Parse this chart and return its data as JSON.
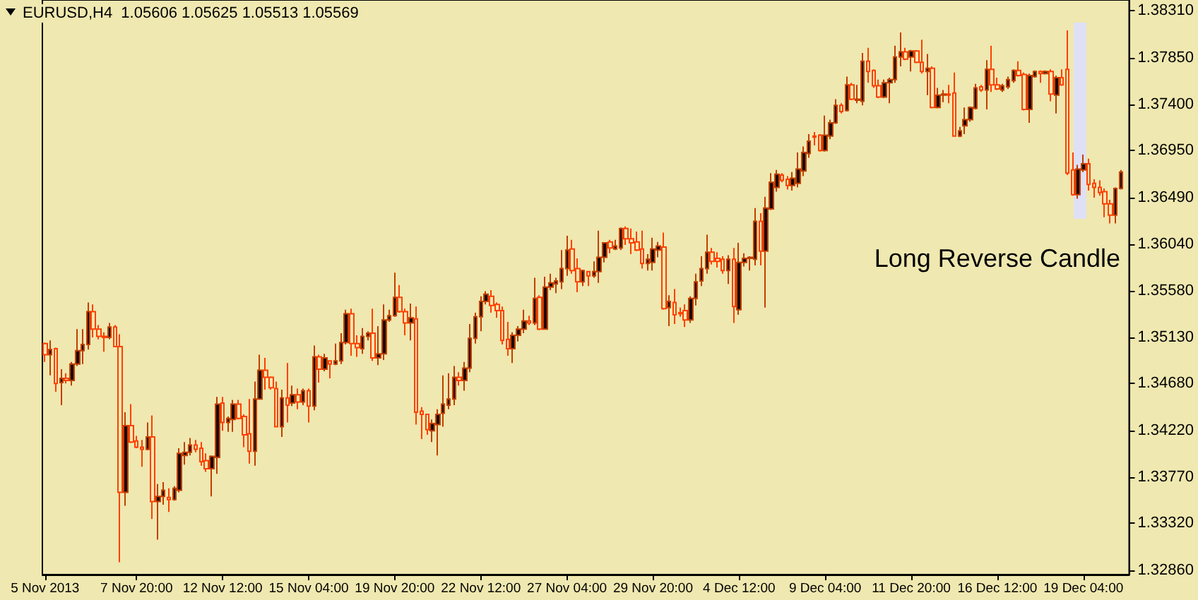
{
  "chart_data": {
    "type": "candlestick",
    "title": "EURUSD,H4  1.05606 1.05625 1.05513 1.05569",
    "annotations": [
      "Long Reverse Candle"
    ],
    "categories": [
      "5 Nov 2013",
      null,
      null,
      null,
      null,
      null,
      null,
      null,
      null,
      null,
      null,
      null,
      null,
      null,
      null,
      null,
      null,
      "7 Nov 20:00",
      null,
      null,
      null,
      null,
      null,
      null,
      null,
      null,
      null,
      null,
      null,
      null,
      null,
      null,
      null,
      "12 Nov 12:00",
      null,
      null,
      null,
      null,
      null,
      null,
      null,
      null,
      null,
      null,
      null,
      null,
      null,
      null,
      null,
      "15 Nov 04:00",
      null,
      null,
      null,
      null,
      null,
      null,
      null,
      null,
      null,
      null,
      null,
      null,
      null,
      null,
      null,
      "19 Nov 20:00",
      null,
      null,
      null,
      null,
      null,
      null,
      null,
      null,
      null,
      null,
      null,
      null,
      null,
      null,
      null,
      "22 Nov 12:00",
      null,
      null,
      null,
      null,
      null,
      null,
      null,
      null,
      null,
      null,
      null,
      null,
      null,
      null,
      null,
      "27 Nov 04:00",
      null,
      null,
      null,
      null,
      null,
      null,
      null,
      null,
      null,
      null,
      null,
      null,
      null,
      null,
      null,
      "29 Nov 20:00",
      null,
      null,
      null,
      null,
      null,
      null,
      null,
      null,
      null,
      null,
      null,
      null,
      null,
      null,
      null,
      "4 Dec 12:00",
      null,
      null,
      null,
      null,
      null,
      null,
      null,
      null,
      null,
      null,
      null,
      null,
      null,
      null,
      null,
      "9 Dec 04:00",
      null,
      null,
      null,
      null,
      null,
      null,
      null,
      null,
      null,
      null,
      null,
      null,
      null,
      null,
      null,
      "11 Dec 20:00",
      null,
      null,
      null,
      null,
      null,
      null,
      null,
      null,
      null,
      null,
      null,
      null,
      null,
      null,
      null,
      "16 Dec 12:00",
      null,
      null,
      null,
      null,
      null,
      null,
      null,
      null,
      null,
      null,
      null,
      null,
      null,
      null,
      null,
      "19 Dec 04:00",
      null,
      null,
      null,
      null,
      null,
      null,
      null
    ],
    "ohlc": [
      [
        1.3507,
        1.3508,
        1.3489,
        1.3496
      ],
      [
        1.3496,
        1.351,
        1.3476,
        1.3501
      ],
      [
        1.3502,
        1.3503,
        1.346,
        1.3468
      ],
      [
        1.3469,
        1.3482,
        1.3447,
        1.3473
      ],
      [
        1.3473,
        1.3478,
        1.3468,
        1.3471
      ],
      [
        1.3471,
        1.3489,
        1.3466,
        1.3487
      ],
      [
        1.3487,
        1.3521,
        1.3485,
        1.35
      ],
      [
        1.35,
        1.3521,
        1.3487,
        1.3506
      ],
      [
        1.3506,
        1.3547,
        1.3501,
        1.3538
      ],
      [
        1.3538,
        1.3545,
        1.3513,
        1.3521
      ],
      [
        1.3521,
        1.3525,
        1.3511,
        1.3514
      ],
      [
        1.3514,
        1.3518,
        1.3499,
        1.3513
      ],
      [
        1.3513,
        1.3527,
        1.3511,
        1.3523
      ],
      [
        1.3523,
        1.3525,
        1.3504,
        1.3504
      ],
      [
        1.3504,
        1.3516,
        1.3294,
        1.3362
      ],
      [
        1.3362,
        1.344,
        1.3349,
        1.3427
      ],
      [
        1.3427,
        1.3448,
        1.341,
        1.3411
      ],
      [
        1.3412,
        1.3417,
        1.3405,
        1.3406
      ],
      [
        1.3406,
        1.3413,
        1.3387,
        1.3404
      ],
      [
        1.3404,
        1.343,
        1.3403,
        1.3416
      ],
      [
        1.3416,
        1.3437,
        1.3336,
        1.3353
      ],
      [
        1.3353,
        1.337,
        1.3316,
        1.3358
      ],
      [
        1.3358,
        1.3372,
        1.335,
        1.3364
      ],
      [
        1.3357,
        1.3366,
        1.3343,
        1.3355
      ],
      [
        1.3355,
        1.3368,
        1.3354,
        1.3366
      ],
      [
        1.3364,
        1.3405,
        1.3362,
        1.34
      ],
      [
        1.3398,
        1.3411,
        1.3389,
        1.3401
      ],
      [
        1.3401,
        1.3415,
        1.3398,
        1.3408
      ],
      [
        1.3408,
        1.3413,
        1.3401,
        1.3404
      ],
      [
        1.3405,
        1.3411,
        1.3388,
        1.3392
      ],
      [
        1.3393,
        1.34,
        1.3382,
        1.3385
      ],
      [
        1.3385,
        1.3398,
        1.3358,
        1.3397
      ],
      [
        1.3396,
        1.3455,
        1.338,
        1.3448
      ],
      [
        1.3449,
        1.3455,
        1.3422,
        1.343
      ],
      [
        1.343,
        1.3436,
        1.3421,
        1.3434
      ],
      [
        1.3433,
        1.3452,
        1.3421,
        1.3448
      ],
      [
        1.3448,
        1.3452,
        1.3433,
        1.3434
      ],
      [
        1.3436,
        1.3438,
        1.3406,
        1.3418
      ],
      [
        1.3419,
        1.3453,
        1.339,
        1.3402
      ],
      [
        1.3402,
        1.347,
        1.3388,
        1.3453
      ],
      [
        1.3453,
        1.3496,
        1.3452,
        1.3481
      ],
      [
        1.3481,
        1.3493,
        1.3462,
        1.3474
      ],
      [
        1.3474,
        1.3475,
        1.3462,
        1.3464
      ],
      [
        1.3463,
        1.347,
        1.3426,
        1.3426
      ],
      [
        1.3426,
        1.3462,
        1.3416,
        1.3454
      ],
      [
        1.3454,
        1.3488,
        1.343,
        1.3447
      ],
      [
        1.3449,
        1.3466,
        1.3446,
        1.3457
      ],
      [
        1.3457,
        1.3463,
        1.3443,
        1.345
      ],
      [
        1.345,
        1.3463,
        1.3447,
        1.3461
      ],
      [
        1.3461,
        1.3463,
        1.343,
        1.3446
      ],
      [
        1.3446,
        1.3505,
        1.3442,
        1.3494
      ],
      [
        1.3494,
        1.3496,
        1.3469,
        1.3482
      ],
      [
        1.3482,
        1.3497,
        1.348,
        1.3493
      ],
      [
        1.349,
        1.349,
        1.3473,
        1.3487
      ],
      [
        1.3487,
        1.3507,
        1.3486,
        1.349
      ],
      [
        1.349,
        1.3517,
        1.3487,
        1.3508
      ],
      [
        1.3508,
        1.354,
        1.3506,
        1.3536
      ],
      [
        1.3536,
        1.3541,
        1.3495,
        1.3507
      ],
      [
        1.3507,
        1.3515,
        1.3494,
        1.3503
      ],
      [
        1.3502,
        1.3522,
        1.3497,
        1.3514
      ],
      [
        1.3514,
        1.3519,
        1.351,
        1.3517
      ],
      [
        1.3517,
        1.3541,
        1.349,
        1.3493
      ],
      [
        1.3493,
        1.3524,
        1.3486,
        1.3497
      ],
      [
        1.3497,
        1.3545,
        1.3491,
        1.353
      ],
      [
        1.353,
        1.354,
        1.3528,
        1.3534
      ],
      [
        1.3534,
        1.3576,
        1.3533,
        1.3552
      ],
      [
        1.3552,
        1.3564,
        1.3537,
        1.3538
      ],
      [
        1.3538,
        1.3541,
        1.3515,
        1.3527
      ],
      [
        1.3527,
        1.3546,
        1.351,
        1.3532
      ],
      [
        1.3531,
        1.3543,
        1.3428,
        1.344
      ],
      [
        1.3441,
        1.3445,
        1.3414,
        1.3438
      ],
      [
        1.3438,
        1.3438,
        1.3418,
        1.3423
      ],
      [
        1.3422,
        1.3433,
        1.3411,
        1.3429
      ],
      [
        1.3428,
        1.3443,
        1.3398,
        1.3438
      ],
      [
        1.3439,
        1.3476,
        1.3426,
        1.3448
      ],
      [
        1.3447,
        1.3478,
        1.3443,
        1.3453
      ],
      [
        1.3453,
        1.3485,
        1.3447,
        1.3474
      ],
      [
        1.3474,
        1.3479,
        1.3466,
        1.3471
      ],
      [
        1.3471,
        1.3489,
        1.3461,
        1.3483
      ],
      [
        1.3483,
        1.3526,
        1.3479,
        1.3512
      ],
      [
        1.3512,
        1.3537,
        1.3507,
        1.3533
      ],
      [
        1.3533,
        1.3553,
        1.3519,
        1.3548
      ],
      [
        1.3548,
        1.3558,
        1.3545,
        1.3555
      ],
      [
        1.3553,
        1.3559,
        1.3537,
        1.3544
      ],
      [
        1.3545,
        1.3547,
        1.3532,
        1.3539
      ],
      [
        1.3539,
        1.3543,
        1.3506,
        1.351
      ],
      [
        1.3511,
        1.3528,
        1.3495,
        1.3502
      ],
      [
        1.3502,
        1.3518,
        1.3488,
        1.3515
      ],
      [
        1.3515,
        1.3524,
        1.3509,
        1.3521
      ],
      [
        1.3521,
        1.354,
        1.3517,
        1.3529
      ],
      [
        1.3529,
        1.3534,
        1.3525,
        1.3527
      ],
      [
        1.3527,
        1.3571,
        1.3525,
        1.3551
      ],
      [
        1.3552,
        1.3554,
        1.352,
        1.3521
      ],
      [
        1.3521,
        1.3572,
        1.3521,
        1.3562
      ],
      [
        1.3562,
        1.3575,
        1.3559,
        1.3566
      ],
      [
        1.3565,
        1.3571,
        1.3556,
        1.3568
      ],
      [
        1.3567,
        1.3598,
        1.356,
        1.358
      ],
      [
        1.358,
        1.3612,
        1.3573,
        1.3598
      ],
      [
        1.3599,
        1.3608,
        1.3575,
        1.3578
      ],
      [
        1.358,
        1.359,
        1.3557,
        1.3567
      ],
      [
        1.3567,
        1.3579,
        1.3563,
        1.3578
      ],
      [
        1.3577,
        1.3577,
        1.3563,
        1.3573
      ],
      [
        1.3573,
        1.3587,
        1.3571,
        1.3577
      ],
      [
        1.3577,
        1.3617,
        1.3566,
        1.3591
      ],
      [
        1.3591,
        1.3605,
        1.3586,
        1.3605
      ],
      [
        1.3606,
        1.3608,
        1.3595,
        1.36
      ],
      [
        1.3599,
        1.3608,
        1.3598,
        1.3602
      ],
      [
        1.36,
        1.362,
        1.3598,
        1.3619
      ],
      [
        1.3619,
        1.3621,
        1.3603,
        1.3609
      ],
      [
        1.3609,
        1.3619,
        1.3594,
        1.3605
      ],
      [
        1.3606,
        1.3616,
        1.3597,
        1.3598
      ],
      [
        1.3599,
        1.3617,
        1.358,
        1.3585
      ],
      [
        1.3585,
        1.3594,
        1.3578,
        1.3589
      ],
      [
        1.3586,
        1.361,
        1.3578,
        1.3599
      ],
      [
        1.3598,
        1.3606,
        1.3591,
        1.3602
      ],
      [
        1.3601,
        1.3615,
        1.354,
        1.3541
      ],
      [
        1.3542,
        1.3554,
        1.3524,
        1.3548
      ],
      [
        1.3547,
        1.356,
        1.3526,
        1.3535
      ],
      [
        1.3537,
        1.3542,
        1.3533,
        1.3536
      ],
      [
        1.3539,
        1.3545,
        1.3523,
        1.353
      ],
      [
        1.353,
        1.3553,
        1.3527,
        1.3551
      ],
      [
        1.3551,
        1.3575,
        1.3544,
        1.3567
      ],
      [
        1.3568,
        1.3592,
        1.3563,
        1.358
      ],
      [
        1.358,
        1.3613,
        1.3575,
        1.3596
      ],
      [
        1.3596,
        1.36,
        1.3584,
        1.3587
      ],
      [
        1.359,
        1.3596,
        1.3581,
        1.3587
      ],
      [
        1.3589,
        1.3592,
        1.3575,
        1.3578
      ],
      [
        1.3578,
        1.3593,
        1.3565,
        1.3589
      ],
      [
        1.3589,
        1.36,
        1.3527,
        1.3543
      ],
      [
        1.354,
        1.3605,
        1.3535,
        1.3586
      ],
      [
        1.3586,
        1.3595,
        1.3582,
        1.359
      ],
      [
        1.359,
        1.3592,
        1.3578,
        1.3591
      ],
      [
        1.3589,
        1.3639,
        1.3583,
        1.3626
      ],
      [
        1.3626,
        1.3634,
        1.3583,
        1.3597
      ],
      [
        1.3597,
        1.365,
        1.3542,
        1.3639
      ],
      [
        1.3638,
        1.3673,
        1.3637,
        1.3664
      ],
      [
        1.3659,
        1.3676,
        1.3655,
        1.3672
      ],
      [
        1.3671,
        1.3673,
        1.3664,
        1.3666
      ],
      [
        1.3667,
        1.367,
        1.3657,
        1.3661
      ],
      [
        1.3661,
        1.3674,
        1.3656,
        1.3668
      ],
      [
        1.3663,
        1.3693,
        1.3659,
        1.3677
      ],
      [
        1.3675,
        1.3699,
        1.367,
        1.3693
      ],
      [
        1.3692,
        1.3711,
        1.3688,
        1.3704
      ],
      [
        1.3709,
        1.3713,
        1.37,
        1.3708
      ],
      [
        1.371,
        1.3711,
        1.3694,
        1.3695
      ],
      [
        1.3695,
        1.3729,
        1.3694,
        1.371
      ],
      [
        1.3709,
        1.3725,
        1.3706,
        1.3722
      ],
      [
        1.3722,
        1.3745,
        1.3721,
        1.3739
      ],
      [
        1.3739,
        1.3741,
        1.3731,
        1.3733
      ],
      [
        1.3734,
        1.3767,
        1.3733,
        1.3759
      ],
      [
        1.3759,
        1.3761,
        1.3744,
        1.3745
      ],
      [
        1.3744,
        1.3759,
        1.3741,
        1.3745
      ],
      [
        1.3743,
        1.379,
        1.3739,
        1.3782
      ],
      [
        1.3782,
        1.3795,
        1.3761,
        1.3772
      ],
      [
        1.3773,
        1.3774,
        1.3756,
        1.3758
      ],
      [
        1.3758,
        1.3764,
        1.3746,
        1.3747
      ],
      [
        1.3747,
        1.3764,
        1.3746,
        1.3761
      ],
      [
        1.3761,
        1.3766,
        1.3741,
        1.3764
      ],
      [
        1.3764,
        1.3797,
        1.3761,
        1.3786
      ],
      [
        1.3786,
        1.381,
        1.3777,
        1.3791
      ],
      [
        1.3791,
        1.3795,
        1.3783,
        1.3784
      ],
      [
        1.3786,
        1.3793,
        1.3772,
        1.3792
      ],
      [
        1.3792,
        1.3793,
        1.378,
        1.3781
      ],
      [
        1.3781,
        1.3803,
        1.377,
        1.3772
      ],
      [
        1.3772,
        1.3789,
        1.3749,
        1.3775
      ],
      [
        1.3775,
        1.3777,
        1.3736,
        1.3737
      ],
      [
        1.3737,
        1.3756,
        1.3736,
        1.3749
      ],
      [
        1.3749,
        1.3754,
        1.3742,
        1.375
      ],
      [
        1.375,
        1.3759,
        1.3741,
        1.3749
      ],
      [
        1.3751,
        1.3771,
        1.3709,
        1.3709
      ],
      [
        1.3709,
        1.3718,
        1.3708,
        1.3714
      ],
      [
        1.3719,
        1.3737,
        1.3711,
        1.3725
      ],
      [
        1.3725,
        1.3738,
        1.3723,
        1.3737
      ],
      [
        1.3736,
        1.376,
        1.3735,
        1.3756
      ],
      [
        1.3757,
        1.3759,
        1.3752,
        1.3754
      ],
      [
        1.3754,
        1.3783,
        1.3735,
        1.3774
      ],
      [
        1.3774,
        1.3797,
        1.3752,
        1.3759
      ],
      [
        1.3759,
        1.3766,
        1.3754,
        1.3755
      ],
      [
        1.3754,
        1.376,
        1.3752,
        1.3758
      ],
      [
        1.3757,
        1.3767,
        1.3755,
        1.3764
      ],
      [
        1.3763,
        1.3774,
        1.3761,
        1.3773
      ],
      [
        1.3773,
        1.3782,
        1.3767,
        1.3768
      ],
      [
        1.3769,
        1.3771,
        1.3734,
        1.3735
      ],
      [
        1.3735,
        1.377,
        1.3722,
        1.3768
      ],
      [
        1.3767,
        1.3773,
        1.3766,
        1.3772
      ],
      [
        1.3772,
        1.3773,
        1.3761,
        1.377
      ],
      [
        1.377,
        1.3773,
        1.3769,
        1.3772
      ],
      [
        1.3772,
        1.3774,
        1.3743,
        1.375
      ],
      [
        1.3749,
        1.3768,
        1.3731,
        1.3766
      ],
      [
        1.3766,
        1.3774,
        1.3758,
        1.3759
      ],
      [
        1.3774,
        1.3812,
        1.3671,
        1.3673
      ],
      [
        1.3676,
        1.3693,
        1.3651,
        1.3652
      ],
      [
        1.3652,
        1.3681,
        1.3648,
        1.3677
      ],
      [
        1.3676,
        1.3691,
        1.3674,
        1.3682
      ],
      [
        1.3682,
        1.3687,
        1.3656,
        1.3662
      ],
      [
        1.3663,
        1.3667,
        1.3649,
        1.3659
      ],
      [
        1.3659,
        1.3666,
        1.3651,
        1.3654
      ],
      [
        1.3655,
        1.3658,
        1.363,
        1.3643
      ],
      [
        1.3643,
        1.3647,
        1.3624,
        1.3632
      ],
      [
        1.3632,
        1.3659,
        1.3624,
        1.3658
      ],
      [
        1.3658,
        1.3676,
        1.3657,
        1.3674
      ]
    ],
    "colors": [
      "#ff4000",
      "#c04000",
      "#ff4000",
      "#c04000",
      "#ff4000",
      "#c04000",
      "#c04000",
      "#c04000",
      "#c04000",
      "#ff4000",
      "#ff4000",
      "#ff4000",
      "#c04000",
      "#ff4000",
      "#ff4000",
      "#c04000",
      "#ff4000",
      "#ff4000",
      "#ff4000",
      "#c04000",
      "#ff4000",
      "#c04000",
      "#c04000",
      "#ff4000",
      "#c04000",
      "#c04000",
      "#c04000",
      "#c04000",
      "#ff4000",
      "#ff4000",
      "#ff4000",
      "#c04000",
      "#c04000",
      "#ff4000",
      "#c04000",
      "#c04000",
      "#ff4000",
      "#ff4000",
      "#ff4000",
      "#c04000",
      "#c04000",
      "#ff4000",
      "#ff4000",
      "#ff4000",
      "#c04000",
      "#ff4000",
      "#c04000",
      "#ff4000",
      "#c04000",
      "#ff4000",
      "#c04000",
      "#ff4000",
      "#c04000",
      "#ff4000",
      "#c04000",
      "#c04000",
      "#c04000",
      "#ff4000",
      "#ff4000",
      "#c04000",
      "#c04000",
      "#ff4000",
      "#c04000",
      "#c04000",
      "#c04000",
      "#c04000",
      "#ff4000",
      "#ff4000",
      "#c04000",
      "#ff4000",
      "#ff4000",
      "#ff4000",
      "#c04000",
      "#c04000",
      "#c04000",
      "#c04000",
      "#c04000",
      "#ff4000",
      "#c04000",
      "#c04000",
      "#c04000",
      "#c04000",
      "#c04000",
      "#ff4000",
      "#ff4000",
      "#ff4000",
      "#ff4000",
      "#c04000",
      "#c04000",
      "#c04000",
      "#ff4000",
      "#c04000",
      "#ff4000",
      "#c04000",
      "#c04000",
      "#c04000",
      "#c04000",
      "#c04000",
      "#ff4000",
      "#ff4000",
      "#c04000",
      "#ff4000",
      "#c04000",
      "#c04000",
      "#c04000",
      "#ff4000",
      "#c04000",
      "#c04000",
      "#ff4000",
      "#ff4000",
      "#ff4000",
      "#ff4000",
      "#c04000",
      "#c04000",
      "#c04000",
      "#ff4000",
      "#c04000",
      "#ff4000",
      "#ff4000",
      "#ff4000",
      "#c04000",
      "#c04000",
      "#c04000",
      "#c04000",
      "#ff4000",
      "#ff4000",
      "#ff4000",
      "#c04000",
      "#ff4000",
      "#c04000",
      "#c04000",
      "#c04000",
      "#c04000",
      "#ff4000",
      "#c04000",
      "#c04000",
      "#c04000",
      "#ff4000",
      "#ff4000",
      "#c04000",
      "#c04000",
      "#c04000",
      "#c04000",
      "#ff4000",
      "#ff4000",
      "#c04000",
      "#c04000",
      "#c04000",
      "#ff4000",
      "#c04000",
      "#ff4000",
      "#c04000",
      "#c04000",
      "#ff4000",
      "#ff4000",
      "#ff4000",
      "#c04000",
      "#c04000",
      "#c04000",
      "#c04000",
      "#ff4000",
      "#c04000",
      "#ff4000",
      "#ff4000",
      "#c04000",
      "#ff4000",
      "#c04000",
      "#c04000",
      "#ff4000",
      "#ff4000",
      "#c04000",
      "#c04000",
      "#c04000",
      "#c04000",
      "#ff4000",
      "#c04000",
      "#ff4000",
      "#ff4000",
      "#c04000",
      "#c04000",
      "#c04000",
      "#ff4000",
      "#ff4000",
      "#c04000",
      "#c04000",
      "#ff4000",
      "#c04000",
      "#ff4000",
      "#c04000",
      "#ff4000",
      "#ff4000",
      "#ff4000",
      "#c04000",
      "#c04000",
      "#ff4000",
      "#ff4000",
      "#ff4000",
      "#ff4000",
      "#ff4000",
      "#c04000",
      "#c04000"
    ],
    "ylim": [
      1.32819,
      1.38416
    ],
    "yticks": [
      {
        "value": 1.3831,
        "label": "1.38310"
      },
      {
        "value": 1.3785,
        "label": "1.37850"
      },
      {
        "value": 1.374,
        "label": "1.37400"
      },
      {
        "value": 1.3695,
        "label": "1.36950"
      },
      {
        "value": 1.3649,
        "label": "1.36490"
      },
      {
        "value": 1.3604,
        "label": "1.36040"
      },
      {
        "value": 1.3558,
        "label": "1.35580"
      },
      {
        "value": 1.3513,
        "label": "1.35130"
      },
      {
        "value": 1.3468,
        "label": "1.34680"
      },
      {
        "value": 1.3422,
        "label": "1.34220"
      },
      {
        "value": 1.3377,
        "label": "1.33770"
      },
      {
        "value": 1.3332,
        "label": "1.33320"
      },
      {
        "value": 1.3286,
        "label": "1.32860"
      }
    ],
    "grid": false
  }
}
